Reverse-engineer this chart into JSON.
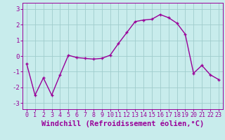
{
  "x": [
    0,
    1,
    2,
    3,
    4,
    5,
    6,
    7,
    8,
    9,
    10,
    11,
    12,
    13,
    14,
    15,
    16,
    17,
    18,
    19,
    20,
    21,
    22,
    23
  ],
  "y": [
    -0.5,
    -2.5,
    -1.4,
    -2.5,
    -1.2,
    0.05,
    -0.1,
    -0.15,
    -0.2,
    -0.15,
    0.05,
    0.8,
    1.5,
    2.2,
    2.3,
    2.35,
    2.65,
    2.45,
    2.1,
    1.4,
    -1.1,
    -0.6,
    -1.2,
    -1.5
  ],
  "line_color": "#990099",
  "marker_color": "#990099",
  "bg_color": "#c8ecec",
  "grid_color": "#a0cccc",
  "xlabel": "Windchill (Refroidissement éolien,°C)",
  "ylim": [
    -3.4,
    3.4
  ],
  "xlim": [
    -0.5,
    23.5
  ],
  "yticks": [
    -3,
    -2,
    -1,
    0,
    1,
    2,
    3
  ],
  "xticks": [
    0,
    1,
    2,
    3,
    4,
    5,
    6,
    7,
    8,
    9,
    10,
    11,
    12,
    13,
    14,
    15,
    16,
    17,
    18,
    19,
    20,
    21,
    22,
    23
  ],
  "tick_color": "#990099",
  "label_fontsize": 7.5,
  "tick_fontsize": 6.0,
  "linewidth": 1.0,
  "markersize": 3.5,
  "markeredgewidth": 1.0
}
